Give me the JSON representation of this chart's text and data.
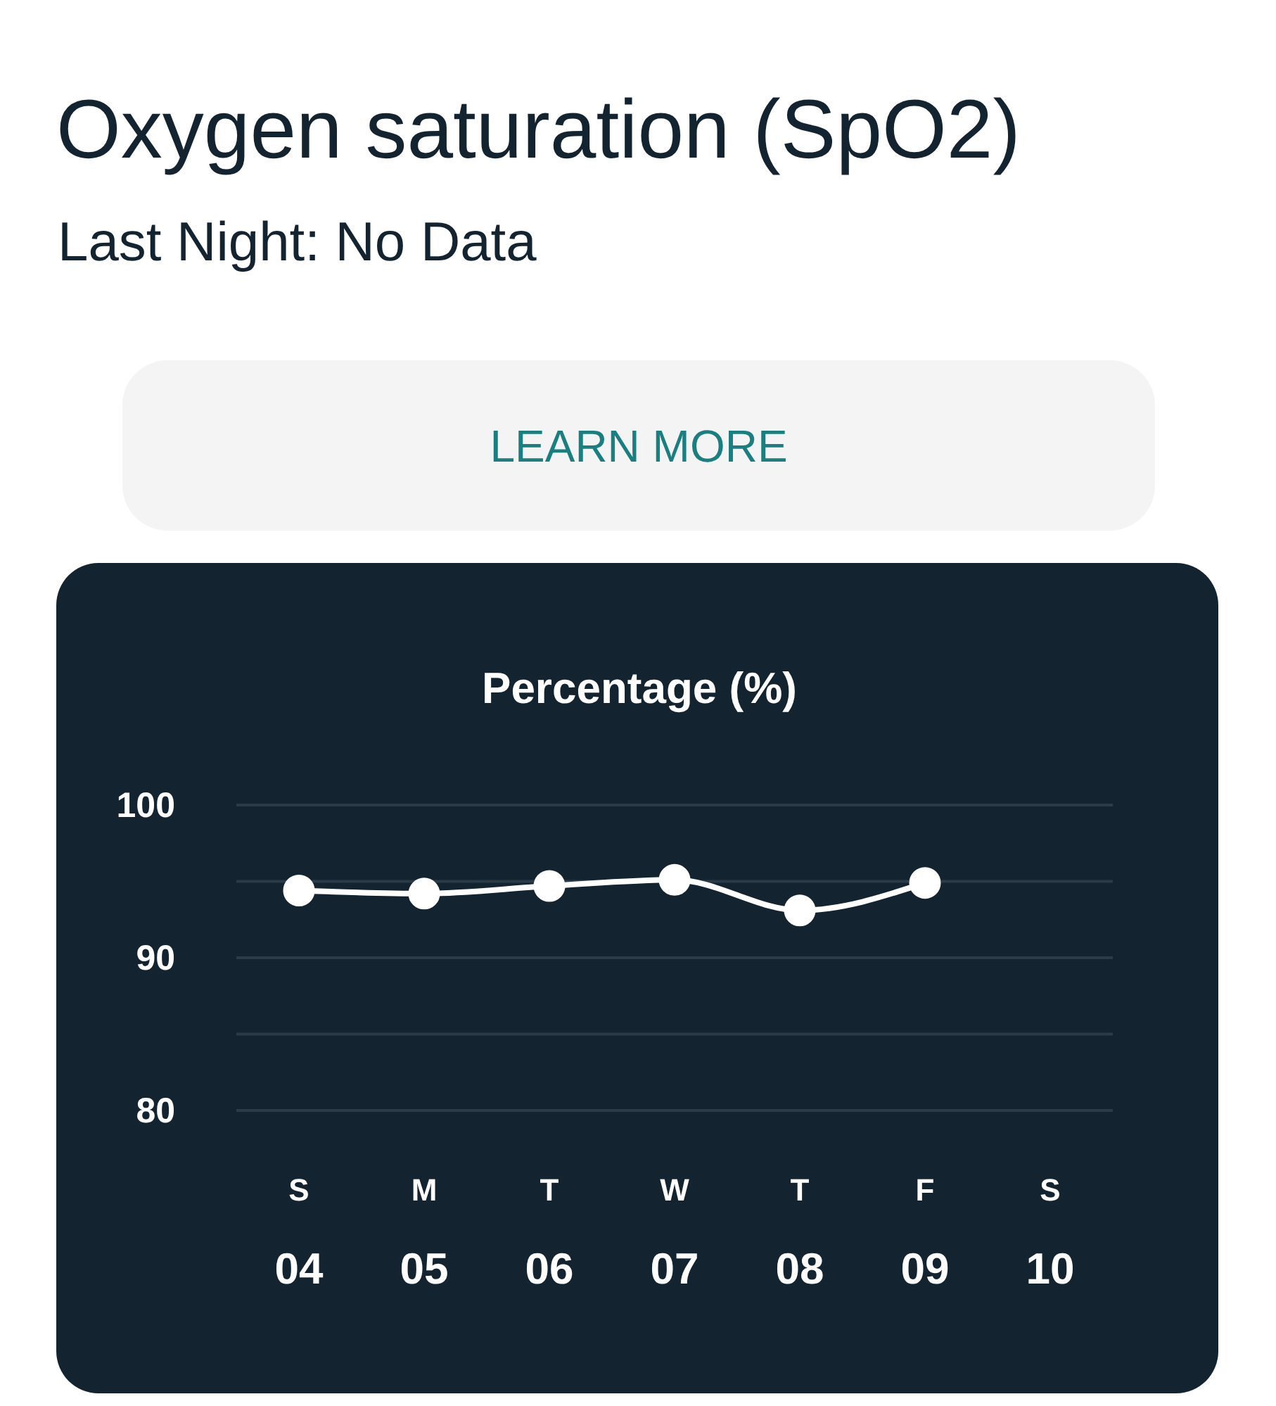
{
  "chart_data": {
    "type": "line",
    "title": "Oxygen saturation (SpO2)",
    "subtitle": "Last Night: No Data",
    "annotations": [
      "LEARN MORE"
    ],
    "ylabel": "Percentage (%)",
    "categories": [
      "S\n04",
      "M\n05",
      "T\n06",
      "W\n07",
      "T\n08",
      "F\n09",
      "S\n10"
    ],
    "series": [
      {
        "color": "#ffffff",
        "values": [
          94.4,
          94.2,
          94.7,
          95.1,
          93.1,
          94.9,
          null
        ]
      }
    ],
    "ylim": [
      80,
      100
    ],
    "yticks": [
      80,
      {
        "value": 85,
        "label": null
      },
      90,
      {
        "value": 95,
        "label": null
      },
      100
    ],
    "grid": "y",
    "marker": "circle",
    "line_style": "solid"
  }
}
